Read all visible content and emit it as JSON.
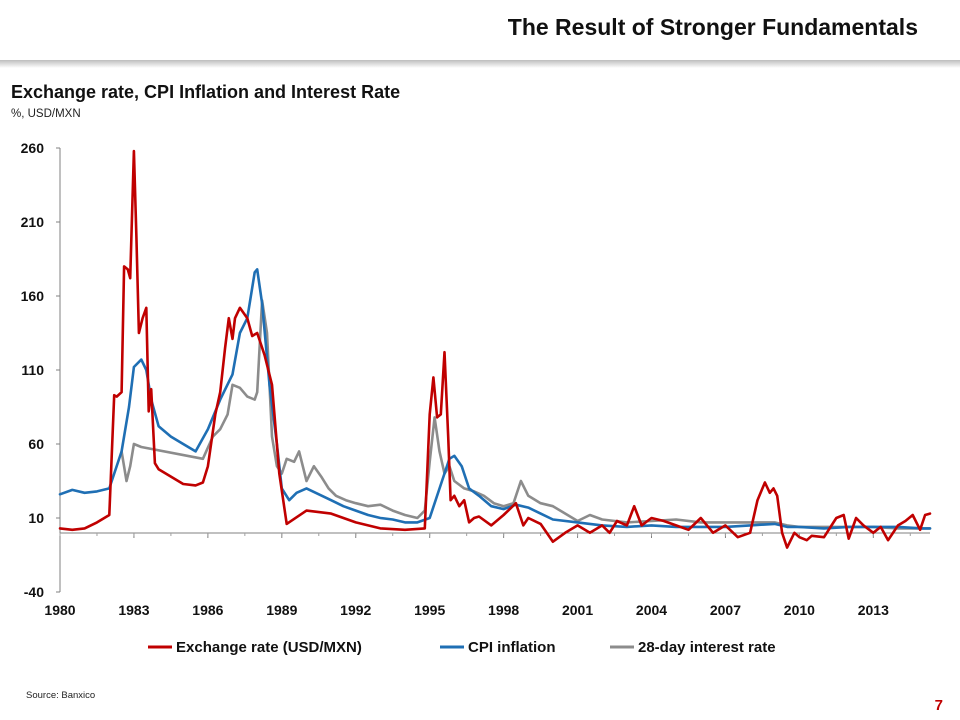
{
  "header": {
    "title": "The Result of Stronger Fundamentals"
  },
  "footer": {
    "source": "Source: Banxico",
    "page_number": "7"
  },
  "chart_data": {
    "type": "line",
    "title": "Exchange rate, CPI Inflation and Interest Rate",
    "subtitle": "%, USD/MXN",
    "xlabel": "",
    "ylabel": "",
    "ylim": [
      -40,
      260
    ],
    "y_ticks": [
      -40,
      10,
      60,
      110,
      160,
      210,
      260
    ],
    "xlim": [
      1980,
      2015.3
    ],
    "x_ticks": [
      1980,
      1983,
      1986,
      1989,
      1992,
      1995,
      1998,
      2001,
      2004,
      2007,
      2010,
      2013
    ],
    "grid": false,
    "legend_position": "bottom",
    "series": [
      {
        "name": "Exchange rate (USD/MXN)",
        "color": "#c00000",
        "x": [
          1980,
          1980.5,
          1981,
          1981.5,
          1982,
          1982.2,
          1982.3,
          1982.5,
          1982.6,
          1982.75,
          1982.85,
          1983.0,
          1983.1,
          1983.2,
          1983.35,
          1983.5,
          1983.6,
          1983.7,
          1983.85,
          1984,
          1984.5,
          1985,
          1985.5,
          1985.8,
          1986,
          1986.3,
          1986.5,
          1986.7,
          1986.85,
          1987,
          1987.1,
          1987.3,
          1987.6,
          1987.8,
          1988,
          1988.3,
          1988.6,
          1988.9,
          1989.2,
          1990,
          1991,
          1992,
          1993,
          1994,
          1994.8,
          1995.0,
          1995.15,
          1995.3,
          1995.45,
          1995.6,
          1995.75,
          1995.85,
          1996,
          1996.2,
          1996.4,
          1996.6,
          1996.8,
          1997,
          1997.5,
          1998,
          1998.5,
          1998.8,
          1999,
          1999.5,
          2000,
          2000.5,
          2001,
          2001.5,
          2002,
          2002.3,
          2002.6,
          2003,
          2003.3,
          2003.6,
          2004,
          2004.5,
          2005,
          2005.5,
          2006,
          2006.5,
          2007,
          2007.5,
          2008,
          2008.3,
          2008.6,
          2008.8,
          2008.95,
          2009.1,
          2009.3,
          2009.5,
          2009.8,
          2010,
          2010.3,
          2010.5,
          2011,
          2011.5,
          2011.8,
          2012,
          2012.3,
          2012.6,
          2013,
          2013.3,
          2013.6,
          2014,
          2014.3,
          2014.6,
          2014.9,
          2015.1,
          2015.3
        ],
        "values": [
          3,
          2,
          3,
          7,
          12,
          93,
          92,
          95,
          180,
          178,
          172,
          258,
          200,
          135,
          145,
          152,
          82,
          97,
          47,
          43,
          38,
          33,
          32,
          34,
          45,
          80,
          95,
          125,
          145,
          131,
          145,
          152,
          145,
          133,
          135,
          120,
          100,
          40,
          6,
          15,
          13,
          7,
          3,
          2,
          3,
          80,
          105,
          78,
          80,
          122,
          65,
          22,
          25,
          18,
          22,
          7,
          10,
          11,
          5,
          12,
          20,
          5,
          10,
          6,
          -6,
          0,
          5,
          0,
          5,
          0,
          8,
          5,
          18,
          5,
          10,
          8,
          5,
          2,
          10,
          0,
          5,
          -3,
          0,
          22,
          34,
          27,
          30,
          25,
          0,
          -10,
          0,
          -3,
          -5,
          -2,
          -3,
          10,
          12,
          -4,
          10,
          5,
          0,
          4,
          -5,
          5,
          8,
          12,
          2,
          12,
          13
        ]
      },
      {
        "name": "CPI inflation",
        "color": "#1f6fb4",
        "x": [
          1980,
          1980.5,
          1981,
          1981.5,
          1982,
          1982.5,
          1982.8,
          1983.0,
          1983.3,
          1983.5,
          1983.7,
          1984,
          1984.5,
          1985,
          1985.5,
          1986,
          1986.5,
          1987,
          1987.3,
          1987.6,
          1987.9,
          1988.0,
          1988.2,
          1988.5,
          1988.8,
          1989.0,
          1989.3,
          1989.6,
          1990,
          1990.5,
          1991,
          1991.5,
          1992,
          1992.5,
          1993,
          1993.5,
          1994,
          1994.5,
          1995.0,
          1995.5,
          1995.8,
          1996.0,
          1996.3,
          1996.6,
          1997,
          1997.5,
          1998,
          1998.5,
          1999,
          1999.5,
          2000,
          2001,
          2002,
          2003,
          2004,
          2005,
          2006,
          2007,
          2008,
          2009,
          2009.5,
          2010,
          2011,
          2012,
          2013,
          2014,
          2015,
          2015.3
        ],
        "values": [
          26,
          29,
          27,
          28,
          30,
          55,
          85,
          112,
          117,
          110,
          90,
          72,
          65,
          60,
          55,
          70,
          90,
          107,
          135,
          145,
          176,
          178,
          155,
          100,
          60,
          30,
          22,
          27,
          30,
          26,
          22,
          18,
          15,
          12,
          10,
          9,
          7,
          7,
          10,
          35,
          50,
          52,
          45,
          30,
          25,
          18,
          16,
          19,
          17,
          13,
          9,
          7,
          5,
          4,
          5,
          4,
          4,
          4,
          5,
          6,
          4,
          4,
          3,
          4,
          4,
          4,
          3,
          3
        ]
      },
      {
        "name": "28-day interest rate",
        "color": "#8c8c8c",
        "x": [
          1982.5,
          1982.7,
          1982.85,
          1983.0,
          1983.3,
          1985.8,
          1986.2,
          1986.5,
          1986.8,
          1987.0,
          1987.3,
          1987.6,
          1987.9,
          1988.0,
          1988.2,
          1988.4,
          1988.6,
          1988.8,
          1989.0,
          1989.2,
          1989.5,
          1989.7,
          1990,
          1990.3,
          1990.6,
          1990.9,
          1991.2,
          1991.6,
          1992,
          1992.5,
          1993,
          1993.5,
          1994,
          1994.5,
          1994.8,
          1995.0,
          1995.2,
          1995.4,
          1995.6,
          1995.8,
          1996.0,
          1996.4,
          1996.8,
          1997.2,
          1997.6,
          1998,
          1998.4,
          1998.7,
          1999,
          1999.5,
          2000,
          2001,
          2001.5,
          2002,
          2003,
          2004,
          2005,
          2006,
          2007,
          2008,
          2009,
          2009.5,
          2010,
          2011,
          2012,
          2013,
          2014,
          2015,
          2015.3
        ],
        "values": [
          55,
          35,
          45,
          60,
          58,
          50,
          65,
          70,
          80,
          100,
          98,
          92,
          90,
          95,
          157,
          135,
          65,
          45,
          40,
          50,
          48,
          55,
          35,
          45,
          38,
          30,
          25,
          22,
          20,
          18,
          19,
          15,
          12,
          10,
          15,
          48,
          78,
          55,
          40,
          45,
          35,
          30,
          28,
          25,
          20,
          18,
          20,
          35,
          25,
          20,
          18,
          8,
          12,
          9,
          7,
          8,
          9,
          7,
          7,
          7,
          7,
          5,
          4,
          4,
          4,
          4,
          3,
          3,
          3
        ]
      }
    ]
  }
}
